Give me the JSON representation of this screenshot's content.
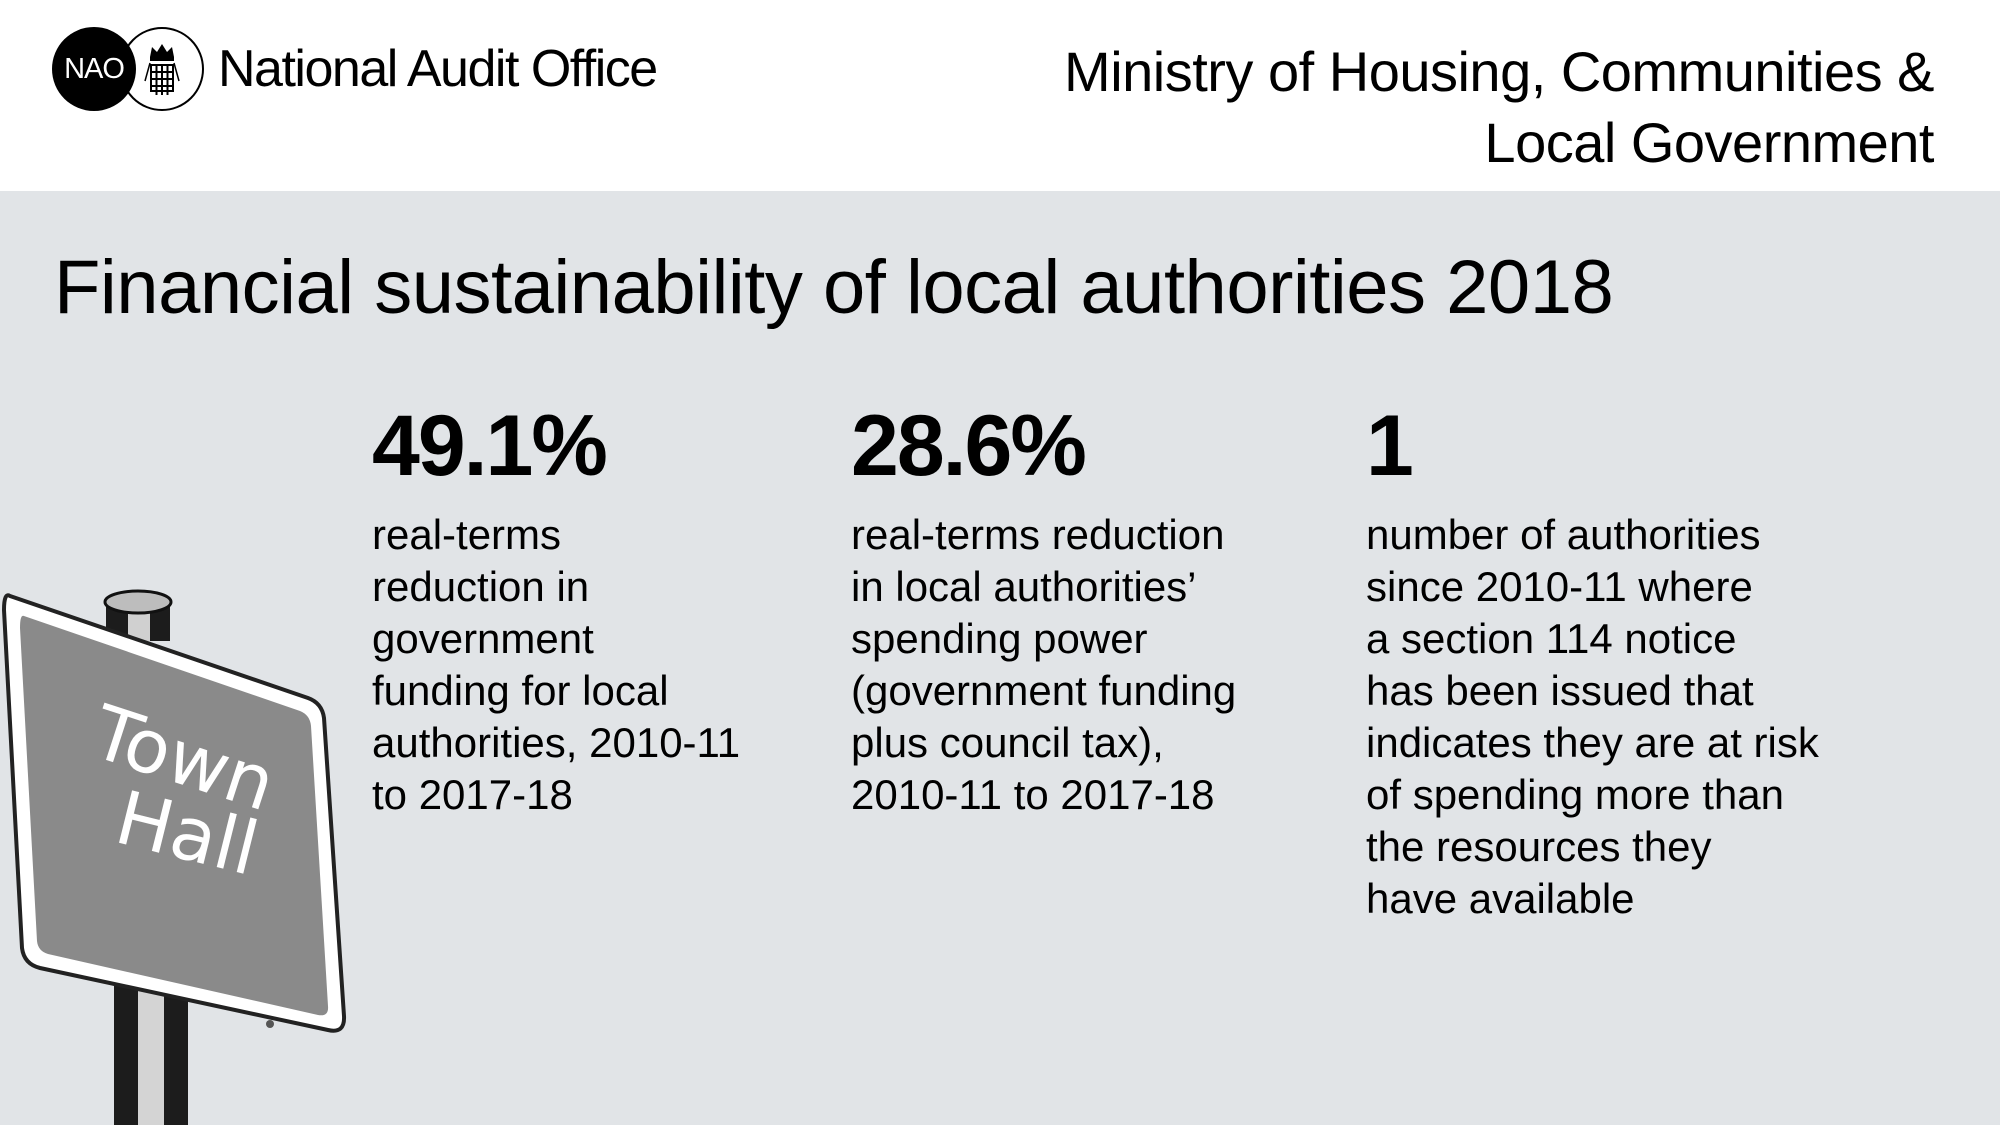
{
  "header": {
    "logo_abbr": "NAO",
    "org_name": "National Audit Office",
    "ministry_line1": "Ministry of Housing, Communities &",
    "ministry_line2": "Local Government"
  },
  "main": {
    "title": "Financial sustainability of local authorities 2018",
    "sign_text_line1": "Town",
    "sign_text_line2": "Hall",
    "stats": [
      {
        "value": "49.1%",
        "description": "real-terms\nreduction in\ngovernment\nfunding for local\nauthorities, 2010-11\nto 2017-18"
      },
      {
        "value": "28.6%",
        "description": "real-terms reduction\nin local authorities’\nspending power\n(government funding\nplus council tax),\n2010-11 to 2017-18"
      },
      {
        "value": "1",
        "description": "number of authorities\nsince 2010-11 where\na section 114 notice\nhas been issued that\nindicates they are at risk\nof spending more than\nthe resources they\nhave available"
      }
    ]
  },
  "colors": {
    "panel_background": "#e1e4e7",
    "sign_face": "#8a8a8a",
    "text": "#000000"
  },
  "icons": {
    "crest": "portcullis-crown-icon"
  }
}
